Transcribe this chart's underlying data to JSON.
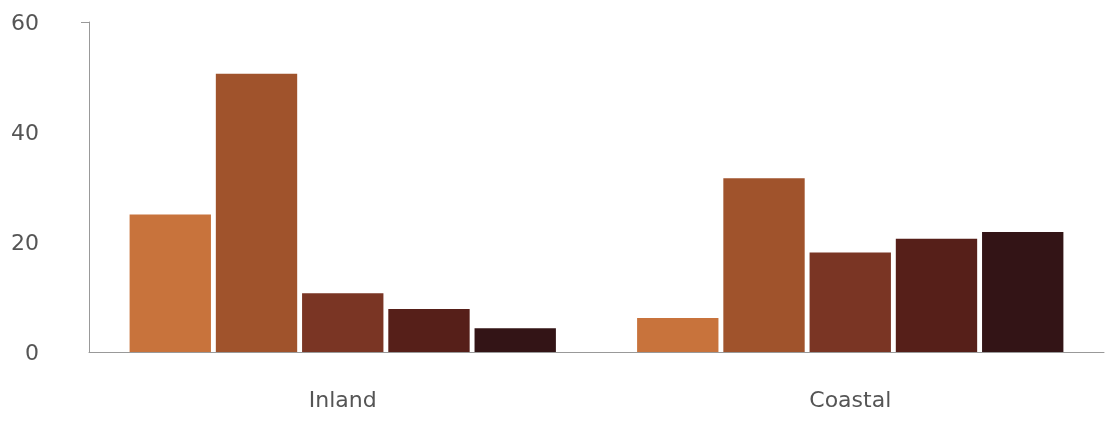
{
  "chart_data": {
    "type": "bar",
    "categories": [
      "Inland",
      "Coastal"
    ],
    "series": [
      {
        "color": "#c8733c",
        "values": [
          25,
          6.2
        ]
      },
      {
        "color": "#a0532c",
        "values": [
          50.6,
          31.6
        ]
      },
      {
        "color": "#7a3524",
        "values": [
          10.7,
          18.1
        ]
      },
      {
        "color": "#561f19",
        "values": [
          7.8,
          20.6
        ]
      },
      {
        "color": "#331416",
        "values": [
          4.3,
          21.8
        ]
      }
    ],
    "ylim": [
      0,
      60
    ],
    "yticks": [
      0,
      20,
      40,
      60
    ],
    "grid": false
  }
}
